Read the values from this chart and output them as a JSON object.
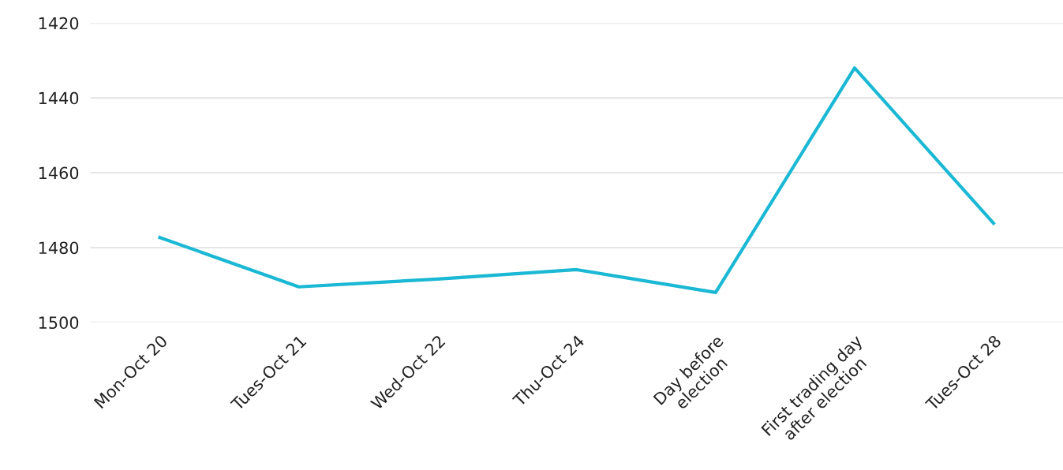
{
  "chart_data": {
    "type": "line",
    "categories": [
      "Mon-Oct 20",
      "Tues-Oct 21",
      "Wed-Oct 22",
      "Thu-Oct 24",
      "Day before\nelection",
      "First trading day\nafter election",
      "Tues-Oct 28"
    ],
    "series": [
      {
        "color": "#1ab8d4",
        "values": [
          1477.3,
          1490.5,
          1488.4,
          1485.9,
          1492,
          1432,
          1473.5
        ]
      }
    ],
    "ylim": [
      1500,
      1420
    ],
    "yticks": [
      1420,
      1440,
      1460,
      1480,
      1500
    ],
    "grid": "y",
    "marker": "none",
    "line_style": "solid"
  }
}
